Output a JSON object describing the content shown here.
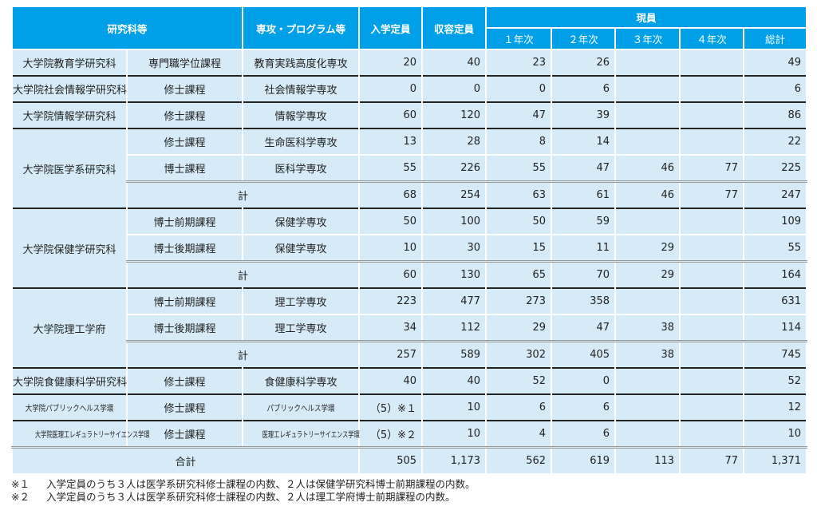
{
  "headers": {
    "faculty": "研究科等",
    "major": "専攻・プログラム等",
    "capacity": "入学定員",
    "total_capacity": "収容定員",
    "current": "現員",
    "y1": "１年次",
    "y2": "２年次",
    "y3": "３年次",
    "y4": "４年次",
    "sum": "総計"
  },
  "subtotal_label": "計",
  "groups": [
    {
      "name": "大学院教育学研究科",
      "rows": [
        {
          "course": "専門職学位課程",
          "major": "教育実践高度化専攻",
          "cap": "20",
          "total": "40",
          "y1": "23",
          "y2": "26",
          "y3": "",
          "y4": "",
          "sum": "49"
        }
      ]
    },
    {
      "name": "大学院社会情報学研究科",
      "rows": [
        {
          "course": "修士課程",
          "major": "社会情報学専攻",
          "cap": "0",
          "total": "0",
          "y1": "0",
          "y2": "6",
          "y3": "",
          "y4": "",
          "sum": "6"
        }
      ]
    },
    {
      "name": "大学院情報学研究科",
      "rows": [
        {
          "course": "修士課程",
          "major": "情報学専攻",
          "cap": "60",
          "total": "120",
          "y1": "47",
          "y2": "39",
          "y3": "",
          "y4": "",
          "sum": "86"
        }
      ]
    },
    {
      "name": "大学院医学系研究科",
      "rows": [
        {
          "course": "修士課程",
          "major": "生命医科学専攻",
          "cap": "13",
          "total": "28",
          "y1": "8",
          "y2": "14",
          "y3": "",
          "y4": "",
          "sum": "22"
        },
        {
          "course": "博士課程",
          "major": "医科学専攻",
          "cap": "55",
          "total": "226",
          "y1": "55",
          "y2": "47",
          "y3": "46",
          "y4": "77",
          "sum": "225"
        }
      ],
      "subtotal": {
        "cap": "68",
        "total": "254",
        "y1": "63",
        "y2": "61",
        "y3": "46",
        "y4": "77",
        "sum": "247"
      }
    },
    {
      "name": "大学院保健学研究科",
      "rows": [
        {
          "course": "博士前期課程",
          "major": "保健学専攻",
          "cap": "50",
          "total": "100",
          "y1": "50",
          "y2": "59",
          "y3": "",
          "y4": "",
          "sum": "109"
        },
        {
          "course": "博士後期課程",
          "major": "保健学専攻",
          "cap": "10",
          "total": "30",
          "y1": "15",
          "y2": "11",
          "y3": "29",
          "y4": "",
          "sum": "55"
        }
      ],
      "subtotal": {
        "cap": "60",
        "total": "130",
        "y1": "65",
        "y2": "70",
        "y3": "29",
        "y4": "",
        "sum": "164"
      }
    },
    {
      "name": "大学院理工学府",
      "rows": [
        {
          "course": "博士前期課程",
          "major": "理工学専攻",
          "cap": "223",
          "total": "477",
          "y1": "273",
          "y2": "358",
          "y3": "",
          "y4": "",
          "sum": "631"
        },
        {
          "course": "博士後期課程",
          "major": "理工学専攻",
          "cap": "34",
          "total": "112",
          "y1": "29",
          "y2": "47",
          "y3": "38",
          "y4": "",
          "sum": "114"
        }
      ],
      "subtotal": {
        "cap": "257",
        "total": "589",
        "y1": "302",
        "y2": "405",
        "y3": "38",
        "y4": "",
        "sum": "745"
      }
    },
    {
      "name": "大学院食健康科学研究科",
      "rows": [
        {
          "course": "修士課程",
          "major": "食健康科学専攻",
          "cap": "40",
          "total": "40",
          "y1": "52",
          "y2": "0",
          "y3": "",
          "y4": "",
          "sum": "52"
        }
      ]
    },
    {
      "name": "大学院パブリックヘルス学環",
      "small": 1,
      "rows": [
        {
          "course": "修士課程",
          "major": "パブリックヘルス学環",
          "cap": "（5）※１",
          "total": "10",
          "y1": "6",
          "y2": "6",
          "y3": "",
          "y4": "",
          "sum": "12"
        }
      ]
    },
    {
      "name": "大学院医理工レギュラトリーサイエンス学環",
      "small": 2,
      "rows": [
        {
          "course": "修士課程",
          "major": "医理工レギュラトリーサイエンス学環",
          "cap": "（5）※２",
          "total": "10",
          "y1": "4",
          "y2": "6",
          "y3": "",
          "y4": "",
          "sum": "10"
        }
      ]
    }
  ],
  "grand_total": {
    "label": "合計",
    "cap": "505",
    "total": "1,173",
    "y1": "562",
    "y2": "619",
    "y3": "113",
    "y4": "77",
    "sum": "1,371"
  },
  "notes": [
    {
      "mark": "※１",
      "text": "入学定員のうち３人は医学系研究科修士課程の内数、２人は保健学研究科博士前期課程の内数。"
    },
    {
      "mark": "※２",
      "text": "入学定員のうち３人は医学系研究科修士課程の内数、２人は理工学府博士前期課程の内数。"
    }
  ]
}
